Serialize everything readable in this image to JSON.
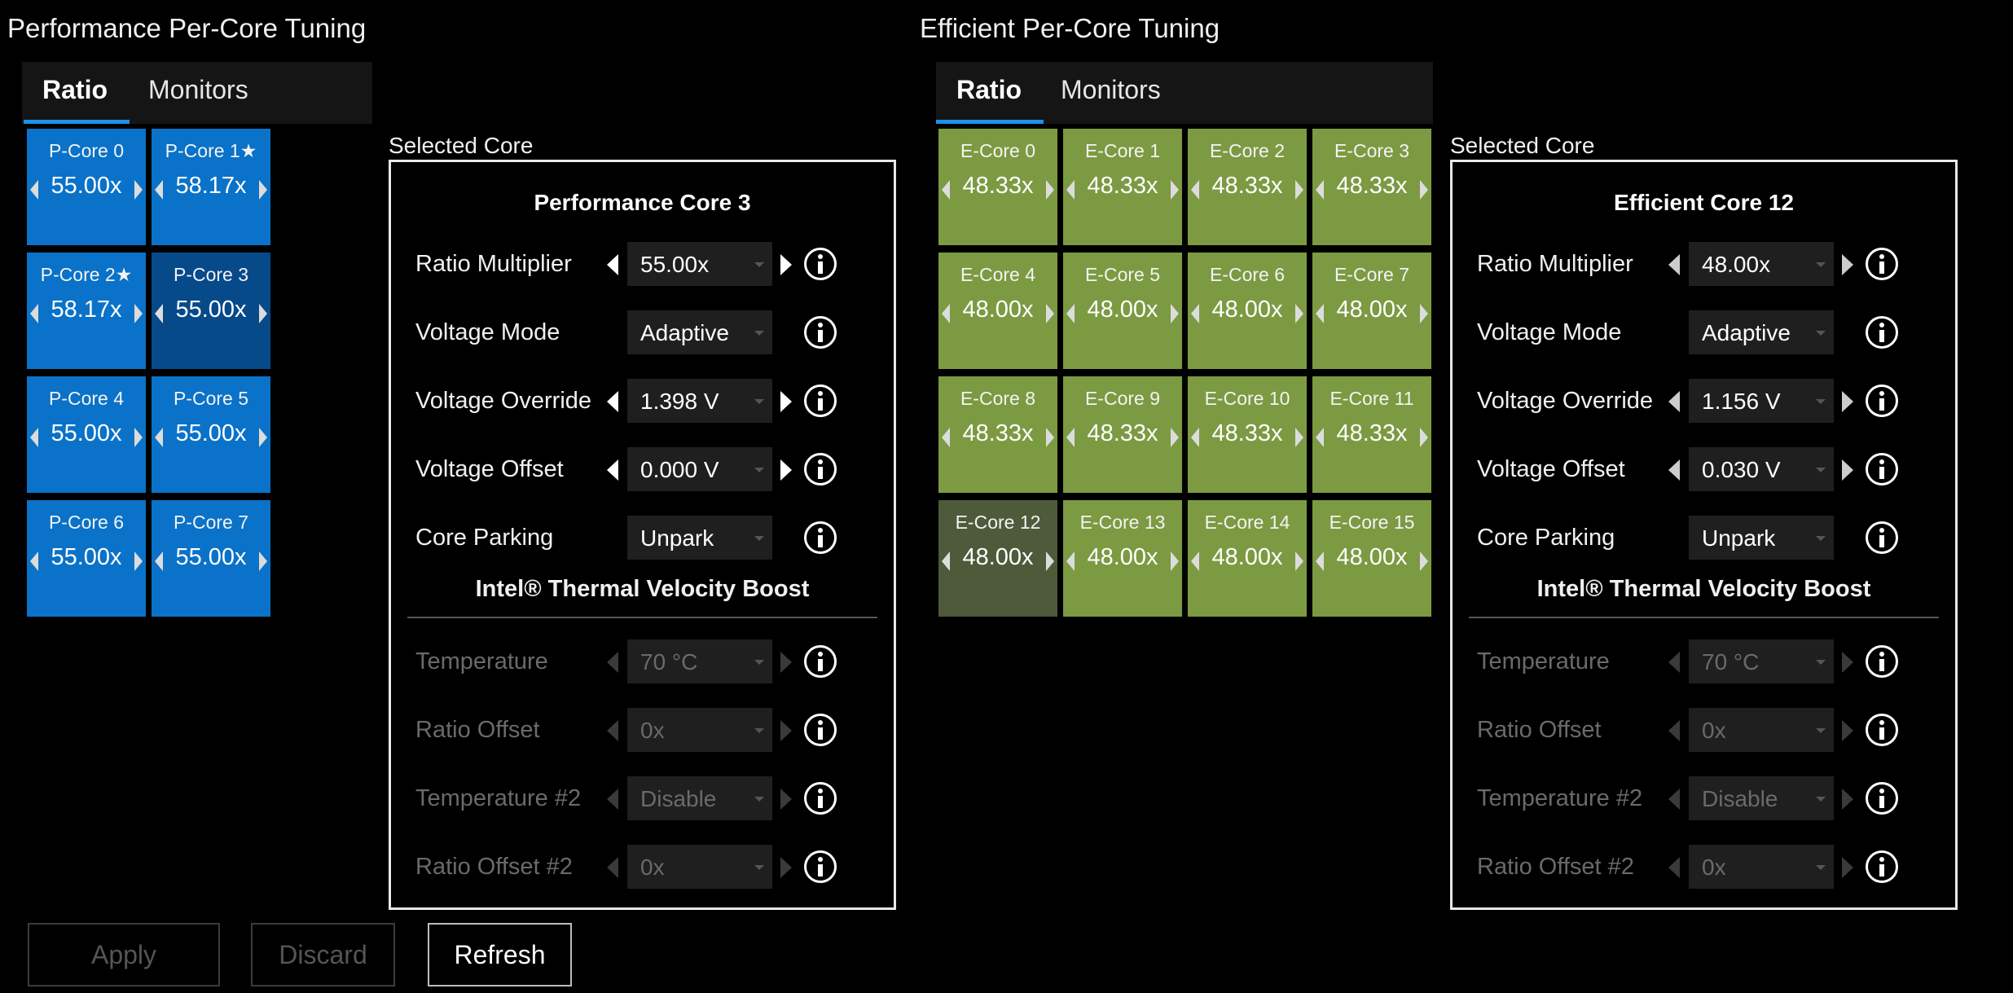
{
  "performance": {
    "title": "Performance Per-Core Tuning",
    "tabs": [
      "Ratio",
      "Monitors"
    ],
    "cores": [
      {
        "name": "P-Core 0",
        "value": "55.00x"
      },
      {
        "name": "P-Core 1★",
        "value": "58.17x"
      },
      {
        "name": "P-Core 2★",
        "value": "58.17x"
      },
      {
        "name": "P-Core 3",
        "value": "55.00x"
      },
      {
        "name": "P-Core 4",
        "value": "55.00x"
      },
      {
        "name": "P-Core 5",
        "value": "55.00x"
      },
      {
        "name": "P-Core 6",
        "value": "55.00x"
      },
      {
        "name": "P-Core 7",
        "value": "55.00x"
      }
    ],
    "selected_label": "Selected Core",
    "selected_title": "Performance Core 3",
    "rows": [
      {
        "label": "Ratio Multiplier",
        "value": "55.00x"
      },
      {
        "label": "Voltage Mode",
        "value": "Adaptive"
      },
      {
        "label": "Voltage Override",
        "value": "1.398 V"
      },
      {
        "label": "Voltage Offset",
        "value": "0.000 V"
      },
      {
        "label": "Core Parking",
        "value": "Unpark"
      }
    ],
    "tvb_title": "Intel® Thermal Velocity Boost",
    "tvb_rows": [
      {
        "label": "Temperature",
        "value": "70 °C"
      },
      {
        "label": "Ratio Offset",
        "value": "0x"
      },
      {
        "label": "Temperature #2",
        "value": "Disable"
      },
      {
        "label": "Ratio Offset #2",
        "value": "0x"
      }
    ]
  },
  "efficient": {
    "title": "Efficient Per-Core Tuning",
    "tabs": [
      "Ratio",
      "Monitors"
    ],
    "cores": [
      {
        "name": "E-Core 0",
        "value": "48.33x"
      },
      {
        "name": "E-Core 1",
        "value": "48.33x"
      },
      {
        "name": "E-Core 2",
        "value": "48.33x"
      },
      {
        "name": "E-Core 3",
        "value": "48.33x"
      },
      {
        "name": "E-Core 4",
        "value": "48.00x"
      },
      {
        "name": "E-Core 5",
        "value": "48.00x"
      },
      {
        "name": "E-Core 6",
        "value": "48.00x"
      },
      {
        "name": "E-Core 7",
        "value": "48.00x"
      },
      {
        "name": "E-Core 8",
        "value": "48.33x"
      },
      {
        "name": "E-Core 9",
        "value": "48.33x"
      },
      {
        "name": "E-Core 10",
        "value": "48.33x"
      },
      {
        "name": "E-Core 11",
        "value": "48.33x"
      },
      {
        "name": "E-Core 12",
        "value": "48.00x"
      },
      {
        "name": "E-Core 13",
        "value": "48.00x"
      },
      {
        "name": "E-Core 14",
        "value": "48.00x"
      },
      {
        "name": "E-Core 15",
        "value": "48.00x"
      }
    ],
    "selected_label": "Selected Core",
    "selected_title": "Efficient Core 12",
    "rows": [
      {
        "label": "Ratio Multiplier",
        "value": "48.00x"
      },
      {
        "label": "Voltage Mode",
        "value": "Adaptive"
      },
      {
        "label": "Voltage Override",
        "value": "1.156 V"
      },
      {
        "label": "Voltage Offset",
        "value": "0.030 V"
      },
      {
        "label": "Core Parking",
        "value": "Unpark"
      }
    ],
    "tvb_title": "Intel® Thermal Velocity Boost",
    "tvb_rows": [
      {
        "label": "Temperature",
        "value": "70 °C"
      },
      {
        "label": "Ratio Offset",
        "value": "0x"
      },
      {
        "label": "Temperature #2",
        "value": "Disable"
      },
      {
        "label": "Ratio Offset #2",
        "value": "0x"
      }
    ]
  },
  "buttons": {
    "apply": "Apply",
    "discard": "Discard",
    "refresh": "Refresh"
  }
}
